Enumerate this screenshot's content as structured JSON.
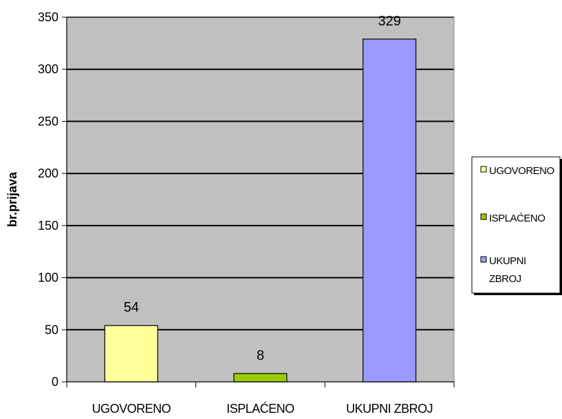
{
  "chart_data": {
    "type": "bar",
    "categories": [
      "UGOVORENO",
      "ISPLAĆENO",
      "UKUPNI ZBROJ"
    ],
    "values": [
      54,
      8,
      329
    ],
    "colors": [
      "#FFFF99",
      "#99CC00",
      "#9999FF"
    ],
    "plot_background": "#C0C0C0",
    "ylabel": "br.prijava",
    "xlabel": "",
    "title": "",
    "ylim": [
      0,
      350
    ],
    "yticks": [
      0,
      50,
      100,
      150,
      200,
      250,
      300,
      350
    ],
    "grid": true,
    "legend_position": "right",
    "legend": [
      {
        "lines": [
          "UGOVORENO"
        ],
        "color": "#FFFF99"
      },
      {
        "lines": [
          "ISPLAĆENO"
        ],
        "color": "#99CC00"
      },
      {
        "lines": [
          "UKUPNI",
          "ZBROJ"
        ],
        "color": "#9999FF"
      }
    ]
  }
}
